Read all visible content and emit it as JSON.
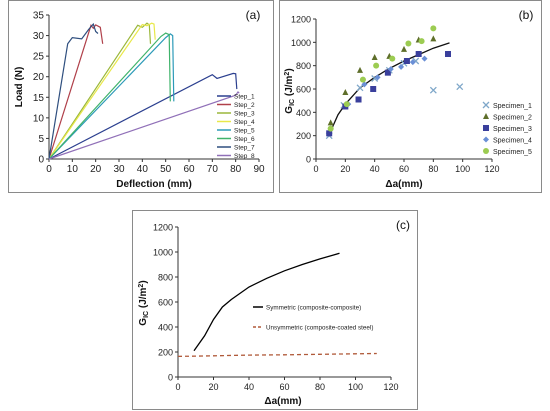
{
  "panels": {
    "a": {
      "label": "(a)"
    },
    "b": {
      "label": "(b)"
    },
    "c": {
      "label": "(c)"
    }
  },
  "chart_data": [
    {
      "type": "line",
      "panel_label": "(a)",
      "xlabel": "Deflection (mm)",
      "ylabel": "Load (N)",
      "xlim": [
        0,
        90
      ],
      "ylim": [
        0,
        35
      ],
      "x_ticks": [
        0,
        10,
        20,
        30,
        40,
        50,
        60,
        70,
        80,
        90
      ],
      "y_ticks": [
        0,
        5,
        10,
        15,
        20,
        25,
        30,
        35
      ],
      "grid": false,
      "legend_position": "bottom-right",
      "series": [
        {
          "name": "Step_1",
          "color": "#2b3f8f",
          "x": [
            0,
            70,
            72,
            79,
            80,
            80.5
          ],
          "y": [
            0,
            20.5,
            19.6,
            20.8,
            20.7,
            17
          ]
        },
        {
          "name": "Step_2",
          "color": "#b0404a",
          "x": [
            0,
            18,
            19,
            20,
            22,
            23
          ],
          "y": [
            0,
            32.5,
            31.8,
            32.6,
            32.0,
            28
          ]
        },
        {
          "name": "Step_3",
          "color": "#9ab73a",
          "x": [
            0,
            38,
            40,
            42,
            43,
            43.5
          ],
          "y": [
            0,
            32.5,
            32.0,
            33.0,
            32.6,
            28
          ]
        },
        {
          "name": "Step_4",
          "color": "#e8e84a",
          "x": [
            0,
            40,
            42,
            44,
            45,
            45.5
          ],
          "y": [
            0,
            32.7,
            32.4,
            33.0,
            32.8,
            29
          ]
        },
        {
          "name": "Step_5",
          "color": "#2c9ab8",
          "x": [
            0,
            50,
            52,
            53,
            53.5
          ],
          "y": [
            0,
            29.5,
            30.4,
            30.0,
            14
          ]
        },
        {
          "name": "Step_6",
          "color": "#3fb36b",
          "x": [
            0,
            48,
            50,
            51.5,
            52
          ],
          "y": [
            0,
            29.8,
            30.6,
            30.2,
            14
          ]
        },
        {
          "name": "Step_7",
          "color": "#2f4f7f",
          "x": [
            0,
            8,
            10,
            14,
            17,
            19,
            20,
            21
          ],
          "y": [
            0,
            28,
            29.5,
            29.2,
            31.5,
            32.8,
            31.0,
            30.5
          ]
        },
        {
          "name": "Step_8",
          "color": "#9070b8",
          "x": [
            0,
            80,
            81,
            81.5
          ],
          "y": [
            0,
            15.5,
            16.3,
            16.0
          ]
        }
      ]
    },
    {
      "type": "scatter",
      "panel_label": "(b)",
      "xlabel": "Δa(mm)",
      "ylabel_main": "G",
      "ylabel_sub": "IC",
      "ylabel_unit_pre": " (J/m",
      "ylabel_unit_sup": "2",
      "ylabel_unit_post": ")",
      "xlim": [
        0,
        120
      ],
      "ylim": [
        0,
        1200
      ],
      "x_ticks": [
        0,
        20,
        40,
        60,
        80,
        100,
        120
      ],
      "y_ticks": [
        0,
        200,
        400,
        600,
        800,
        1000,
        1200
      ],
      "grid": false,
      "legend_position": "right",
      "series": [
        {
          "name": "Specimen_1",
          "color": "#7fa7c9",
          "marker": "x",
          "x": [
            9,
            19,
            30,
            40,
            50,
            60,
            68,
            80,
            98
          ],
          "y": [
            200,
            460,
            610,
            690,
            760,
            820,
            840,
            590,
            620
          ]
        },
        {
          "name": "Specimen_2",
          "color": "#5e6e2a",
          "marker": "triangle",
          "x": [
            10,
            20,
            30,
            40,
            50,
            60,
            70,
            80
          ],
          "y": [
            310,
            570,
            760,
            870,
            880,
            940,
            1020,
            1030
          ]
        },
        {
          "name": "Specimen_3",
          "color": "#3a3f9c",
          "marker": "square",
          "x": [
            9,
            20,
            29,
            39,
            49,
            62,
            70,
            90
          ],
          "y": [
            220,
            450,
            510,
            600,
            740,
            840,
            900,
            900
          ]
        },
        {
          "name": "Specimen_4",
          "color": "#6a8fd6",
          "marker": "diamond",
          "x": [
            10,
            22,
            33,
            42,
            51,
            58,
            66,
            74
          ],
          "y": [
            260,
            470,
            640,
            700,
            770,
            790,
            830,
            860
          ]
        },
        {
          "name": "Specimen_5",
          "color": "#9ccc52",
          "marker": "circle",
          "x": [
            10,
            21,
            32,
            41,
            52,
            63,
            72,
            80
          ],
          "y": [
            260,
            470,
            680,
            800,
            860,
            990,
            1010,
            1120
          ]
        }
      ],
      "trend": {
        "x": [
          9,
          15,
          20,
          30,
          40,
          50,
          60,
          70,
          80,
          91
        ],
        "y": [
          210,
          380,
          470,
          610,
          700,
          775,
          840,
          895,
          950,
          995
        ]
      }
    },
    {
      "type": "line",
      "panel_label": "(c)",
      "xlabel": "Δa(mm)",
      "ylabel_main": "G",
      "ylabel_sub": "IC",
      "ylabel_unit_pre": " (J/m",
      "ylabel_unit_sup": "2",
      "ylabel_unit_post": ")",
      "xlim": [
        0,
        120
      ],
      "ylim": [
        0,
        1200
      ],
      "x_ticks": [
        0,
        20,
        40,
        60,
        80,
        100,
        120
      ],
      "y_ticks": [
        0,
        200,
        400,
        600,
        800,
        1000,
        1200
      ],
      "grid": false,
      "legend_position": "center-right",
      "series": [
        {
          "name": "Symmetric (composite-composite)",
          "color": "#000000",
          "dash": false,
          "x": [
            9,
            15,
            20,
            25,
            30,
            40,
            50,
            60,
            70,
            80,
            91
          ],
          "y": [
            210,
            330,
            460,
            560,
            620,
            720,
            790,
            850,
            900,
            945,
            990
          ]
        },
        {
          "name": "Unsymmetric (composite-coated steel)",
          "color": "#b05a3a",
          "dash": true,
          "x": [
            0,
            20,
            40,
            60,
            80,
            100,
            112
          ],
          "y": [
            165,
            170,
            175,
            178,
            182,
            186,
            188
          ]
        }
      ]
    }
  ]
}
